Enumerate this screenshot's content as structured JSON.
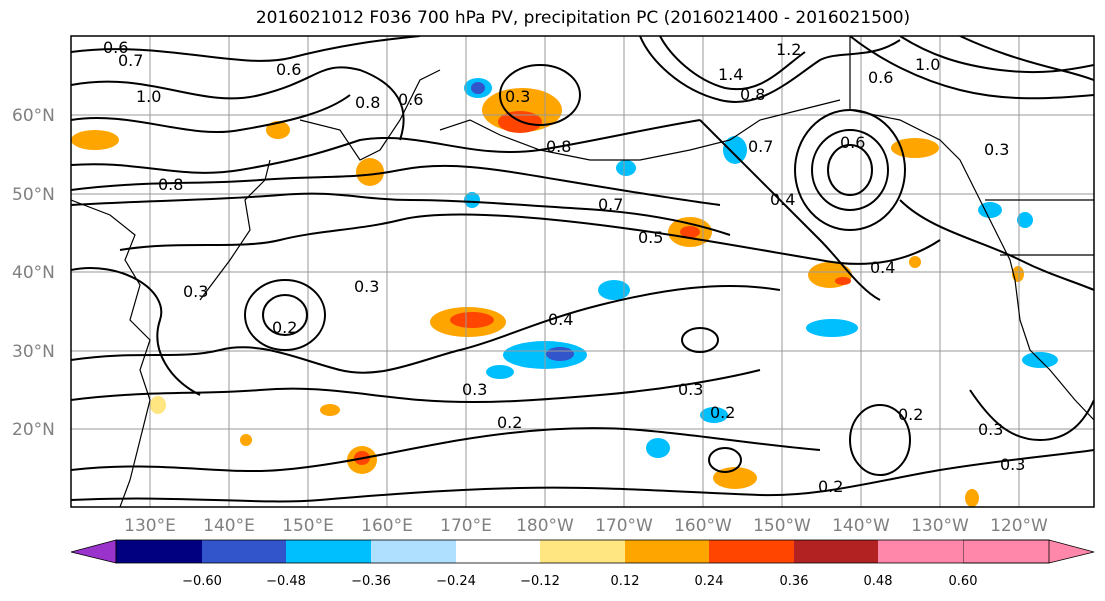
{
  "title": "2016021012 F036 700 hPa PV, precipitation PC (2016021400 - 2016021500)",
  "lat_labels": [
    "60°N",
    "50°N",
    "40°N",
    "30°N",
    "20°N"
  ],
  "lon_labels": [
    "130°E",
    "140°E",
    "150°E",
    "160°E",
    "170°E",
    "180°W",
    "170°W",
    "160°W",
    "150°W",
    "140°W",
    "130°W",
    "120°W"
  ],
  "colorbar": {
    "colors": [
      "#9933cc",
      "#000080",
      "#3355cc",
      "#00bfff",
      "#b0e0ff",
      "#ffffff",
      "#ffe680",
      "#ffa500",
      "#ff4500",
      "#b22222",
      "#ff88aa"
    ],
    "tick_labels": [
      "−0.60",
      "−0.48",
      "−0.36",
      "−0.24",
      "−0.12",
      "0.12",
      "0.24",
      "0.36",
      "0.48",
      "0.60"
    ]
  },
  "contour_labels": [
    "0.6",
    "0.7",
    "1.0",
    "0.6",
    "0.8",
    "0.6",
    "0.3",
    "0.8",
    "1.2",
    "1.4",
    "0.8",
    "1.0",
    "0.6",
    "0.3",
    "0.6",
    "0.7",
    "0.8",
    "0.7",
    "0.5",
    "0.4",
    "0.3",
    "0.2",
    "0.3",
    "0.4",
    "0.3",
    "0.4",
    "0.2",
    "0.3",
    "0.2",
    "0.2",
    "0.3",
    "0.3",
    "0.2"
  ]
}
